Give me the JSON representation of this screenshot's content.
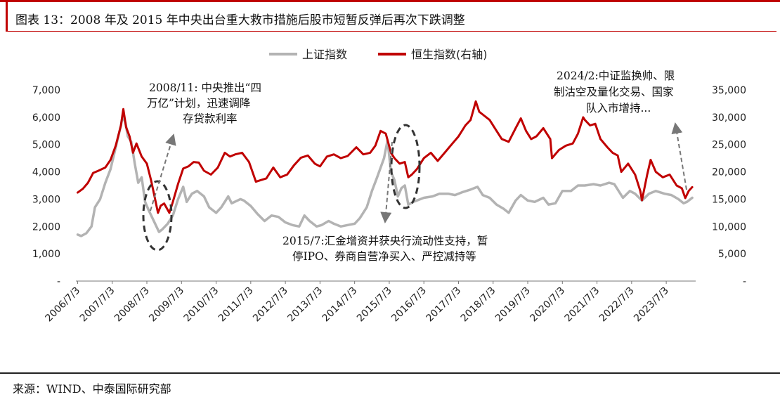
{
  "title": "图表 13：2008 年及 2015 年中央出台重大救市措施后股市短暂反弹后再次下跌调整",
  "source": "来源：WIND、中泰国际研究部",
  "colors": {
    "accent": "#c00000",
    "shanghai": "#b3b3b3",
    "hangseng": "#c00000",
    "annotation": "#777777"
  },
  "chart_data": {
    "type": "line",
    "x_ticks": [
      "2006/7/3",
      "2007/7/3",
      "2008/7/3",
      "2009/7/3",
      "2010/7/3",
      "2011/7/3",
      "2012/7/3",
      "2013/7/3",
      "2014/7/3",
      "2015/7/3",
      "2016/7/3",
      "2017/7/3",
      "2018/7/3",
      "2019/7/3",
      "2020/7/3",
      "2021/7/3",
      "2022/7/3",
      "2023/7/3"
    ],
    "y_left": {
      "range": [
        0,
        7000
      ],
      "ticks": [
        "-",
        "1,000",
        "2,000",
        "3,000",
        "4,000",
        "5,000",
        "6,000",
        "7,000"
      ]
    },
    "y_right": {
      "range": [
        0,
        35000
      ],
      "ticks": [
        "-",
        "5,000",
        "10,000",
        "15,000",
        "20,000",
        "25,000",
        "30,000",
        "35,000"
      ]
    },
    "legend": [
      {
        "name": "上证指数",
        "color": "#b3b3b3"
      },
      {
        "name": "恒生指数(右轴)",
        "color": "#c00000"
      }
    ],
    "series": [
      {
        "name": "上证指数",
        "axis": "left",
        "points": [
          [
            2006.5,
            1700
          ],
          [
            2006.6,
            1650
          ],
          [
            2006.75,
            1750
          ],
          [
            2006.9,
            2000
          ],
          [
            2007.0,
            2700
          ],
          [
            2007.15,
            3000
          ],
          [
            2007.3,
            3600
          ],
          [
            2007.45,
            4100
          ],
          [
            2007.6,
            4900
          ],
          [
            2007.75,
            5700
          ],
          [
            2007.8,
            6050
          ],
          [
            2007.88,
            5800
          ],
          [
            2007.95,
            5300
          ],
          [
            2008.05,
            5100
          ],
          [
            2008.15,
            4300
          ],
          [
            2008.25,
            3600
          ],
          [
            2008.35,
            3800
          ],
          [
            2008.45,
            2900
          ],
          [
            2008.55,
            2600
          ],
          [
            2008.7,
            2200
          ],
          [
            2008.85,
            1800
          ],
          [
            2008.95,
            1900
          ],
          [
            2009.1,
            2100
          ],
          [
            2009.25,
            2400
          ],
          [
            2009.4,
            3000
          ],
          [
            2009.55,
            3450
          ],
          [
            2009.65,
            2900
          ],
          [
            2009.8,
            3200
          ],
          [
            2009.95,
            3300
          ],
          [
            2010.15,
            3100
          ],
          [
            2010.3,
            2700
          ],
          [
            2010.5,
            2500
          ],
          [
            2010.65,
            2700
          ],
          [
            2010.85,
            3100
          ],
          [
            2010.95,
            2850
          ],
          [
            2011.2,
            3000
          ],
          [
            2011.3,
            2950
          ],
          [
            2011.5,
            2750
          ],
          [
            2011.7,
            2450
          ],
          [
            2011.9,
            2200
          ],
          [
            2012.1,
            2400
          ],
          [
            2012.3,
            2350
          ],
          [
            2012.5,
            2150
          ],
          [
            2012.7,
            2050
          ],
          [
            2012.9,
            2000
          ],
          [
            2013.05,
            2400
          ],
          [
            2013.2,
            2200
          ],
          [
            2013.4,
            2000
          ],
          [
            2013.55,
            2050
          ],
          [
            2013.75,
            2200
          ],
          [
            2013.9,
            2100
          ],
          [
            2014.1,
            2000
          ],
          [
            2014.3,
            2050
          ],
          [
            2014.5,
            2100
          ],
          [
            2014.65,
            2300
          ],
          [
            2014.85,
            2700
          ],
          [
            2015.0,
            3300
          ],
          [
            2015.15,
            3800
          ],
          [
            2015.35,
            4500
          ],
          [
            2015.45,
            5150
          ],
          [
            2015.55,
            4000
          ],
          [
            2015.65,
            3700
          ],
          [
            2015.75,
            3100
          ],
          [
            2015.85,
            3400
          ],
          [
            2015.95,
            3500
          ],
          [
            2016.05,
            2800
          ],
          [
            2016.2,
            2900
          ],
          [
            2016.5,
            3050
          ],
          [
            2016.75,
            3100
          ],
          [
            2016.95,
            3200
          ],
          [
            2017.2,
            3200
          ],
          [
            2017.4,
            3150
          ],
          [
            2017.6,
            3250
          ],
          [
            2017.85,
            3350
          ],
          [
            2018.05,
            3450
          ],
          [
            2018.2,
            3150
          ],
          [
            2018.4,
            3050
          ],
          [
            2018.6,
            2800
          ],
          [
            2018.8,
            2650
          ],
          [
            2018.95,
            2500
          ],
          [
            2019.15,
            2950
          ],
          [
            2019.3,
            3150
          ],
          [
            2019.5,
            2950
          ],
          [
            2019.7,
            2900
          ],
          [
            2019.95,
            3050
          ],
          [
            2020.1,
            2800
          ],
          [
            2020.3,
            2850
          ],
          [
            2020.5,
            3300
          ],
          [
            2020.75,
            3300
          ],
          [
            2020.95,
            3500
          ],
          [
            2021.15,
            3500
          ],
          [
            2021.4,
            3550
          ],
          [
            2021.6,
            3500
          ],
          [
            2021.85,
            3600
          ],
          [
            2022.0,
            3550
          ],
          [
            2022.25,
            3050
          ],
          [
            2022.45,
            3300
          ],
          [
            2022.6,
            3200
          ],
          [
            2022.8,
            2950
          ],
          [
            2023.0,
            3200
          ],
          [
            2023.2,
            3300
          ],
          [
            2023.45,
            3200
          ],
          [
            2023.65,
            3150
          ],
          [
            2023.85,
            3000
          ],
          [
            2024.0,
            2850
          ],
          [
            2024.1,
            2900
          ],
          [
            2024.25,
            3050
          ]
        ]
      },
      {
        "name": "恒生指数(右轴)",
        "axis": "right",
        "points": [
          [
            2006.5,
            16200
          ],
          [
            2006.65,
            16900
          ],
          [
            2006.8,
            18000
          ],
          [
            2006.95,
            19800
          ],
          [
            2007.1,
            20200
          ],
          [
            2007.3,
            20800
          ],
          [
            2007.45,
            22200
          ],
          [
            2007.6,
            24800
          ],
          [
            2007.75,
            28500
          ],
          [
            2007.82,
            31500
          ],
          [
            2007.9,
            28200
          ],
          [
            2008.0,
            26500
          ],
          [
            2008.1,
            23500
          ],
          [
            2008.2,
            25200
          ],
          [
            2008.35,
            22800
          ],
          [
            2008.5,
            21500
          ],
          [
            2008.62,
            18500
          ],
          [
            2008.72,
            15500
          ],
          [
            2008.82,
            12500
          ],
          [
            2008.9,
            13800
          ],
          [
            2009.0,
            14200
          ],
          [
            2009.15,
            12500
          ],
          [
            2009.25,
            14500
          ],
          [
            2009.4,
            17800
          ],
          [
            2009.55,
            20600
          ],
          [
            2009.7,
            21000
          ],
          [
            2009.85,
            21800
          ],
          [
            2010.0,
            21700
          ],
          [
            2010.15,
            20200
          ],
          [
            2010.35,
            19500
          ],
          [
            2010.55,
            20800
          ],
          [
            2010.75,
            23500
          ],
          [
            2010.9,
            22800
          ],
          [
            2011.05,
            23200
          ],
          [
            2011.25,
            23500
          ],
          [
            2011.45,
            21800
          ],
          [
            2011.65,
            18200
          ],
          [
            2011.8,
            18500
          ],
          [
            2011.95,
            18800
          ],
          [
            2012.15,
            20800
          ],
          [
            2012.35,
            19000
          ],
          [
            2012.55,
            19500
          ],
          [
            2012.75,
            21200
          ],
          [
            2012.95,
            22600
          ],
          [
            2013.15,
            23000
          ],
          [
            2013.35,
            21500
          ],
          [
            2013.5,
            21000
          ],
          [
            2013.7,
            22800
          ],
          [
            2013.9,
            23200
          ],
          [
            2014.1,
            22500
          ],
          [
            2014.3,
            22900
          ],
          [
            2014.55,
            24500
          ],
          [
            2014.75,
            23200
          ],
          [
            2014.95,
            23500
          ],
          [
            2015.1,
            24800
          ],
          [
            2015.25,
            27500
          ],
          [
            2015.4,
            27000
          ],
          [
            2015.55,
            23500
          ],
          [
            2015.65,
            22500
          ],
          [
            2015.8,
            21500
          ],
          [
            2015.95,
            21800
          ],
          [
            2016.05,
            19000
          ],
          [
            2016.15,
            19500
          ],
          [
            2016.3,
            20500
          ],
          [
            2016.5,
            22500
          ],
          [
            2016.7,
            23500
          ],
          [
            2016.9,
            22000
          ],
          [
            2017.1,
            23500
          ],
          [
            2017.3,
            25000
          ],
          [
            2017.5,
            26500
          ],
          [
            2017.7,
            28500
          ],
          [
            2017.85,
            29500
          ],
          [
            2018.0,
            32900
          ],
          [
            2018.1,
            31000
          ],
          [
            2018.2,
            30500
          ],
          [
            2018.4,
            29500
          ],
          [
            2018.55,
            28000
          ],
          [
            2018.75,
            26000
          ],
          [
            2018.95,
            25500
          ],
          [
            2019.15,
            28000
          ],
          [
            2019.3,
            29800
          ],
          [
            2019.45,
            27500
          ],
          [
            2019.6,
            26000
          ],
          [
            2019.75,
            26500
          ],
          [
            2019.95,
            28000
          ],
          [
            2020.15,
            26000
          ],
          [
            2020.2,
            22500
          ],
          [
            2020.4,
            24000
          ],
          [
            2020.6,
            24800
          ],
          [
            2020.8,
            25200
          ],
          [
            2020.95,
            27000
          ],
          [
            2021.1,
            30000
          ],
          [
            2021.15,
            29500
          ],
          [
            2021.3,
            28500
          ],
          [
            2021.45,
            28800
          ],
          [
            2021.6,
            26000
          ],
          [
            2021.8,
            24500
          ],
          [
            2021.95,
            23500
          ],
          [
            2022.1,
            23000
          ],
          [
            2022.2,
            20000
          ],
          [
            2022.4,
            21500
          ],
          [
            2022.6,
            19500
          ],
          [
            2022.75,
            16500
          ],
          [
            2022.8,
            14800
          ],
          [
            2022.95,
            19500
          ],
          [
            2023.05,
            22200
          ],
          [
            2023.2,
            20000
          ],
          [
            2023.4,
            19000
          ],
          [
            2023.6,
            19500
          ],
          [
            2023.8,
            17500
          ],
          [
            2023.95,
            17000
          ],
          [
            2024.05,
            15200
          ],
          [
            2024.15,
            16500
          ],
          [
            2024.25,
            17200
          ]
        ]
      }
    ],
    "annotations": [
      {
        "lines": [
          "2008/11: 中央推出“四",
          "万亿”计划，迅速调降",
          "存贷款利率"
        ]
      },
      {
        "lines": [
          "2015/7:汇金增资并获央行流动性支持，暂",
          "停IPO、券商自营净买入、严控减持等"
        ]
      },
      {
        "lines": [
          "2024/2:中证监换帅、限",
          "制沽空及量化交易、国家",
          "队入市增持..."
        ]
      }
    ]
  }
}
